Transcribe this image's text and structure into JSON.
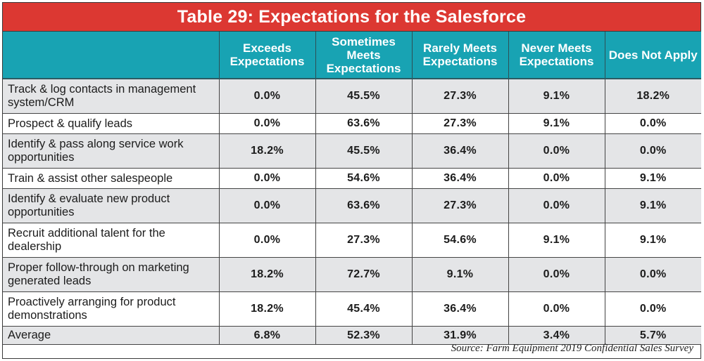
{
  "title": "Table 29: Expectations for the Salesforce",
  "columns": [
    "",
    "Exceeds Expectations",
    "Sometimes Meets Expectations",
    "Rarely Meets Expectations",
    "Never Meets Expectations",
    "Does Not Apply"
  ],
  "rows": [
    {
      "label": "Track & log contacts in management system/CRM",
      "values": [
        "0.0%",
        "45.5%",
        "27.3%",
        "9.1%",
        "18.2%"
      ]
    },
    {
      "label": "Prospect & qualify leads",
      "values": [
        "0.0%",
        "63.6%",
        "27.3%",
        "9.1%",
        "0.0%"
      ]
    },
    {
      "label": "Identify & pass along service work opportunities",
      "values": [
        "18.2%",
        "45.5%",
        "36.4%",
        "0.0%",
        "0.0%"
      ]
    },
    {
      "label": "Train & assist other salespeople",
      "values": [
        "0.0%",
        "54.6%",
        "36.4%",
        "0.0%",
        "9.1%"
      ]
    },
    {
      "label": "Identify & evaluate new product opportunities",
      "values": [
        "0.0%",
        "63.6%",
        "27.3%",
        "0.0%",
        "9.1%"
      ]
    },
    {
      "label": "Recruit additional talent for the dealership",
      "values": [
        "0.0%",
        "27.3%",
        "54.6%",
        "9.1%",
        "9.1%"
      ]
    },
    {
      "label": "Proper follow-through on marketing generated leads",
      "values": [
        "18.2%",
        "72.7%",
        "9.1%",
        "0.0%",
        "0.0%"
      ]
    },
    {
      "label": "Proactively arranging for product demonstrations",
      "values": [
        "18.2%",
        "45.4%",
        "36.4%",
        "0.0%",
        "0.0%"
      ]
    },
    {
      "label": "Average",
      "values": [
        "6.8%",
        "52.3%",
        "31.9%",
        "3.4%",
        "5.7%"
      ]
    }
  ],
  "source": "Source: Farm Equipment 2019 Confidential Sales Survey",
  "colors": {
    "title_bg": "#dc3832",
    "header_bg": "#18a3b3",
    "row_gray": "#e4e5e7",
    "row_white": "#ffffff"
  }
}
